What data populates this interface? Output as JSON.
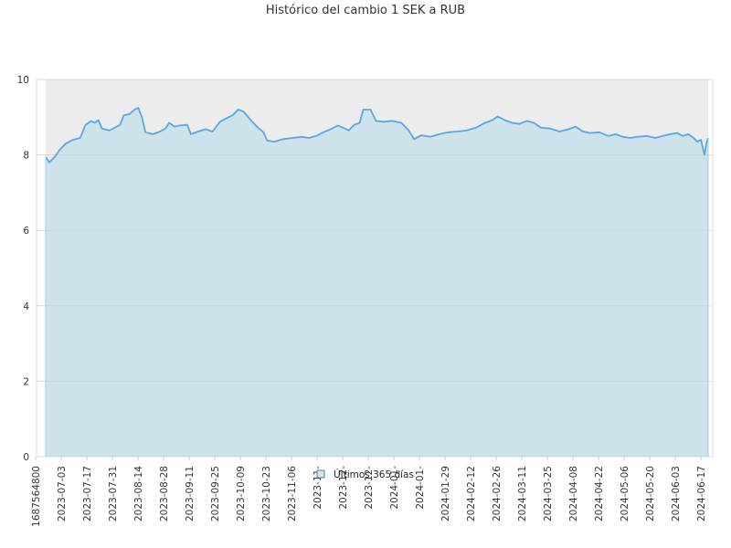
{
  "chart_data": {
    "type": "area",
    "title": "Histórico del cambio 1 SEK a RUB",
    "xlabel": "",
    "ylabel": "",
    "ylim": [
      0,
      10
    ],
    "y_ticks": [
      0,
      2,
      4,
      6,
      8,
      10
    ],
    "x_tick_labels": [
      "1687564800",
      "2023-07-03",
      "2023-07-17",
      "2023-07-31",
      "2023-08-14",
      "2023-08-28",
      "2023-09-11",
      "2023-09-25",
      "2023-10-09",
      "2023-10-23",
      "2023-11-06",
      "2023-11-",
      "2023-12-",
      "2023-12-",
      "2024-01-",
      "2024-01-",
      "2024-01-29",
      "2024-02-12",
      "2024-02-26",
      "2024-03-11",
      "2024-03-25",
      "2024-04-08",
      "2024-04-22",
      "2024-05-06",
      "2024-05-20",
      "2024-06-03",
      "2024-06-17"
    ],
    "x_start": "2023-06-24",
    "x_end": "2024-06-23",
    "grid": true,
    "legend_position": "bottom-center",
    "series": [
      {
        "name": "Últimos 365 días",
        "color": "#5aa7e6",
        "fill": "#b5dbe9",
        "points": [
          [
            "2023-06-24",
            7.95
          ],
          [
            "2023-06-26",
            7.8
          ],
          [
            "2023-06-29",
            7.95
          ],
          [
            "2023-07-02",
            8.15
          ],
          [
            "2023-07-05",
            8.3
          ],
          [
            "2023-07-09",
            8.4
          ],
          [
            "2023-07-13",
            8.45
          ],
          [
            "2023-07-16",
            8.8
          ],
          [
            "2023-07-19",
            8.9
          ],
          [
            "2023-07-21",
            8.85
          ],
          [
            "2023-07-23",
            8.92
          ],
          [
            "2023-07-25",
            8.7
          ],
          [
            "2023-07-29",
            8.65
          ],
          [
            "2023-08-01",
            8.72
          ],
          [
            "2023-08-04",
            8.8
          ],
          [
            "2023-08-06",
            9.05
          ],
          [
            "2023-08-09",
            9.08
          ],
          [
            "2023-08-12",
            9.2
          ],
          [
            "2023-08-14",
            9.25
          ],
          [
            "2023-08-16",
            9.0
          ],
          [
            "2023-08-18",
            8.6
          ],
          [
            "2023-08-22",
            8.55
          ],
          [
            "2023-08-26",
            8.62
          ],
          [
            "2023-08-29",
            8.7
          ],
          [
            "2023-08-31",
            8.85
          ],
          [
            "2023-09-03",
            8.75
          ],
          [
            "2023-09-06",
            8.78
          ],
          [
            "2023-09-10",
            8.8
          ],
          [
            "2023-09-12",
            8.55
          ],
          [
            "2023-09-16",
            8.62
          ],
          [
            "2023-09-20",
            8.68
          ],
          [
            "2023-09-24",
            8.62
          ],
          [
            "2023-09-28",
            8.88
          ],
          [
            "2023-10-02",
            8.98
          ],
          [
            "2023-10-05",
            9.05
          ],
          [
            "2023-10-08",
            9.2
          ],
          [
            "2023-10-11",
            9.15
          ],
          [
            "2023-10-15",
            8.92
          ],
          [
            "2023-10-19",
            8.72
          ],
          [
            "2023-10-22",
            8.6
          ],
          [
            "2023-10-24",
            8.38
          ],
          [
            "2023-10-28",
            8.35
          ],
          [
            "2023-11-02",
            8.42
          ],
          [
            "2023-11-07",
            8.45
          ],
          [
            "2023-11-12",
            8.48
          ],
          [
            "2023-11-16",
            8.45
          ],
          [
            "2023-11-20",
            8.5
          ],
          [
            "2023-11-24",
            8.6
          ],
          [
            "2023-11-28",
            8.68
          ],
          [
            "2023-12-02",
            8.78
          ],
          [
            "2023-12-05",
            8.72
          ],
          [
            "2023-12-08",
            8.65
          ],
          [
            "2023-12-11",
            8.8
          ],
          [
            "2023-12-14",
            8.85
          ],
          [
            "2023-12-16",
            9.2
          ],
          [
            "2023-12-20",
            9.2
          ],
          [
            "2023-12-23",
            8.9
          ],
          [
            "2023-12-27",
            8.88
          ],
          [
            "2024-01-01",
            8.9
          ],
          [
            "2024-01-06",
            8.85
          ],
          [
            "2024-01-10",
            8.65
          ],
          [
            "2024-01-13",
            8.42
          ],
          [
            "2024-01-17",
            8.52
          ],
          [
            "2024-01-22",
            8.48
          ],
          [
            "2024-01-27",
            8.55
          ],
          [
            "2024-02-01",
            8.6
          ],
          [
            "2024-02-06",
            8.62
          ],
          [
            "2024-02-11",
            8.65
          ],
          [
            "2024-02-16",
            8.72
          ],
          [
            "2024-02-21",
            8.85
          ],
          [
            "2024-02-25",
            8.92
          ],
          [
            "2024-02-28",
            9.02
          ],
          [
            "2024-03-03",
            8.92
          ],
          [
            "2024-03-07",
            8.85
          ],
          [
            "2024-03-11",
            8.82
          ],
          [
            "2024-03-15",
            8.9
          ],
          [
            "2024-03-19",
            8.85
          ],
          [
            "2024-03-23",
            8.72
          ],
          [
            "2024-03-28",
            8.7
          ],
          [
            "2024-04-02",
            8.62
          ],
          [
            "2024-04-07",
            8.68
          ],
          [
            "2024-04-11",
            8.75
          ],
          [
            "2024-04-15",
            8.62
          ],
          [
            "2024-04-19",
            8.58
          ],
          [
            "2024-04-24",
            8.6
          ],
          [
            "2024-04-29",
            8.5
          ],
          [
            "2024-05-03",
            8.55
          ],
          [
            "2024-05-07",
            8.48
          ],
          [
            "2024-05-11",
            8.45
          ],
          [
            "2024-05-15",
            8.48
          ],
          [
            "2024-05-20",
            8.5
          ],
          [
            "2024-05-25",
            8.45
          ],
          [
            "2024-05-29",
            8.5
          ],
          [
            "2024-06-02",
            8.55
          ],
          [
            "2024-06-06",
            8.58
          ],
          [
            "2024-06-09",
            8.5
          ],
          [
            "2024-06-12",
            8.55
          ],
          [
            "2024-06-15",
            8.45
          ],
          [
            "2024-06-17",
            8.35
          ],
          [
            "2024-06-19",
            8.4
          ],
          [
            "2024-06-21",
            8.0
          ],
          [
            "2024-06-22",
            8.3
          ],
          [
            "2024-06-23",
            8.45
          ]
        ]
      }
    ]
  }
}
